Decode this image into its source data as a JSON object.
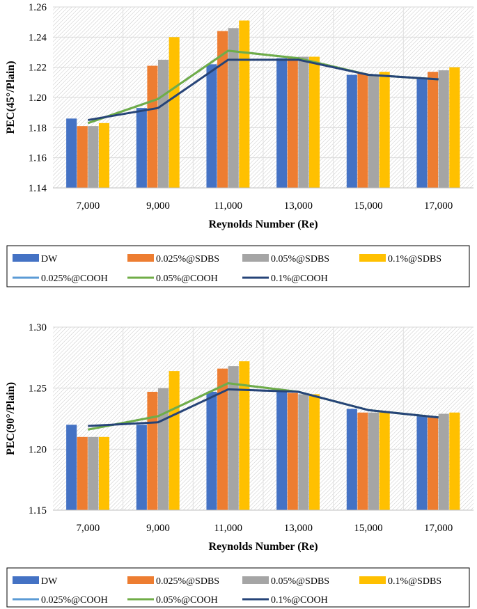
{
  "chart_data": [
    {
      "type": "bar",
      "overlay": "line",
      "title": "",
      "xlabel": "Reynolds Number (Re)",
      "ylabel": "PEC(45°/Plain)",
      "ylim": [
        1.14,
        1.26
      ],
      "yticks": [
        "1.14",
        "1.16",
        "1.18",
        "1.20",
        "1.22",
        "1.24",
        "1.26"
      ],
      "ytick_values": [
        1.14,
        1.16,
        1.18,
        1.2,
        1.22,
        1.24,
        1.26
      ],
      "grid": "hatched plot area",
      "legend_position": "bottom",
      "categories": [
        "7,000",
        "9,000",
        "11,000",
        "13,000",
        "15,000",
        "17,000"
      ],
      "bar_series": [
        {
          "name": "DW",
          "color": "#4472c4",
          "values": [
            1.186,
            1.193,
            1.222,
            1.226,
            1.215,
            1.213
          ]
        },
        {
          "name": "0.025%@SDBS",
          "color": "#ed7d31",
          "values": [
            1.181,
            1.221,
            1.244,
            1.226,
            1.216,
            1.217
          ]
        },
        {
          "name": "0.05%@SDBS",
          "color": "#a5a5a5",
          "values": [
            1.181,
            1.225,
            1.246,
            1.227,
            1.215,
            1.218
          ]
        },
        {
          "name": "0.1%@SDBS",
          "color": "#ffc000",
          "values": [
            1.183,
            1.24,
            1.251,
            1.227,
            1.217,
            1.22
          ]
        }
      ],
      "line_series": [
        {
          "name": "0.025%@COOH",
          "color": "#5b9bd5",
          "values": [
            1.183,
            1.199,
            1.231,
            1.226,
            1.215,
            1.212
          ]
        },
        {
          "name": "0.05%@COOH",
          "color": "#70ad47",
          "values": [
            1.183,
            1.199,
            1.231,
            1.226,
            1.215,
            1.212
          ]
        },
        {
          "name": "0.1%@COOH",
          "color": "#264478",
          "values": [
            1.185,
            1.193,
            1.225,
            1.225,
            1.215,
            1.212
          ]
        }
      ]
    },
    {
      "type": "bar",
      "overlay": "line",
      "title": "",
      "xlabel": "Reynolds Number (Re)",
      "ylabel": "PEC(90°/Plain)",
      "ylim": [
        1.15,
        1.3
      ],
      "yticks": [
        "1.15",
        "1.20",
        "1.25",
        "1.30"
      ],
      "ytick_values": [
        1.15,
        1.2,
        1.25,
        1.3
      ],
      "grid": "hatched plot area",
      "legend_position": "bottom",
      "categories": [
        "7,000",
        "9,000",
        "11,000",
        "13,000",
        "15,000",
        "17,000"
      ],
      "bar_series": [
        {
          "name": "DW",
          "color": "#4472c4",
          "values": [
            1.22,
            1.22,
            1.247,
            1.248,
            1.233,
            1.227
          ]
        },
        {
          "name": "0.025%@SDBS",
          "color": "#ed7d31",
          "values": [
            1.21,
            1.247,
            1.266,
            1.246,
            1.23,
            1.227
          ]
        },
        {
          "name": "0.05%@SDBS",
          "color": "#a5a5a5",
          "values": [
            1.21,
            1.25,
            1.268,
            1.245,
            1.23,
            1.229
          ]
        },
        {
          "name": "0.1%@SDBS",
          "color": "#ffc000",
          "values": [
            1.21,
            1.264,
            1.272,
            1.245,
            1.231,
            1.23
          ]
        }
      ],
      "line_series": [
        {
          "name": "0.025%@COOH",
          "color": "#5b9bd5",
          "values": [
            1.216,
            1.227,
            1.254,
            1.247,
            1.232,
            1.226
          ]
        },
        {
          "name": "0.05%@COOH",
          "color": "#70ad47",
          "values": [
            1.216,
            1.227,
            1.254,
            1.247,
            1.232,
            1.226
          ]
        },
        {
          "name": "0.1%@COOH",
          "color": "#264478",
          "values": [
            1.219,
            1.222,
            1.249,
            1.247,
            1.232,
            1.226
          ]
        }
      ]
    }
  ]
}
